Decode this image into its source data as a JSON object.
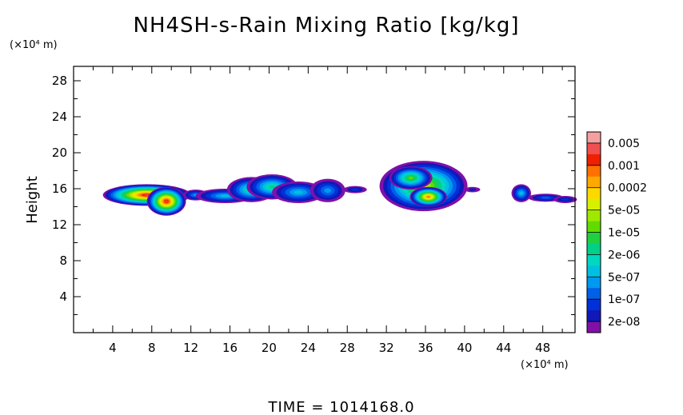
{
  "chart_data": {
    "type": "heatmap",
    "title": "NH4SH-s-Rain Mixing Ratio [kg/kg]",
    "ylabel": "Height",
    "x_unit": "(×10⁴ m)",
    "y_unit": "(×10⁴ m)",
    "footer": "TIME = 1014168.0",
    "xlim": [
      0,
      51.3
    ],
    "ylim": [
      0,
      29.6
    ],
    "x_ticks": [
      4,
      8,
      12,
      16,
      20,
      24,
      28,
      32,
      36,
      40,
      44,
      48
    ],
    "y_ticks": [
      4,
      8,
      12,
      16,
      20,
      24,
      28
    ],
    "colorbar": {
      "labels": [
        "0.005",
        "0.001",
        "0.0002",
        "5e-05",
        "1e-05",
        "2e-06",
        "5e-07",
        "1e-07",
        "2e-08"
      ],
      "colors": [
        "#f5a0a0",
        "#f05050",
        "#ee2000",
        "#ff7000",
        "#ffa800",
        "#ffd800",
        "#d8f000",
        "#a0e800",
        "#60dc00",
        "#20d040",
        "#00d088",
        "#00d8c0",
        "#00c0e0",
        "#0098f0",
        "#0060e8",
        "#0030d8",
        "#1018b8",
        "#8010a8"
      ]
    },
    "clouds": [
      {
        "xc": 7.5,
        "yc": 15.3,
        "rx": 4.5,
        "ry": 1.2,
        "peak": 17
      },
      {
        "xc": 9.5,
        "yc": 14.6,
        "rx": 2.0,
        "ry": 1.6,
        "peak": 17
      },
      {
        "xc": 12.5,
        "yc": 15.3,
        "rx": 1.3,
        "ry": 0.6,
        "peak": 5
      },
      {
        "xc": 15.5,
        "yc": 15.2,
        "rx": 3.0,
        "ry": 0.8,
        "peak": 6
      },
      {
        "xc": 18.2,
        "yc": 15.9,
        "rx": 2.5,
        "ry": 1.4,
        "peak": 8
      },
      {
        "xc": 20.3,
        "yc": 16.2,
        "rx": 2.6,
        "ry": 1.4,
        "peak": 8
      },
      {
        "xc": 23.0,
        "yc": 15.6,
        "rx": 2.7,
        "ry": 1.2,
        "peak": 6
      },
      {
        "xc": 26.0,
        "yc": 15.8,
        "rx": 1.8,
        "ry": 1.3,
        "peak": 5
      },
      {
        "xc": 28.8,
        "yc": 15.9,
        "rx": 1.2,
        "ry": 0.4,
        "peak": 3
      },
      {
        "xc": 35.8,
        "yc": 16.3,
        "rx": 4.5,
        "ry": 2.8,
        "peak": 12
      },
      {
        "xc": 34.5,
        "yc": 17.2,
        "rx": 2.2,
        "ry": 1.3,
        "peak": 10
      },
      {
        "xc": 36.3,
        "yc": 15.1,
        "rx": 1.9,
        "ry": 1.1,
        "peak": 15
      },
      {
        "xc": 40.8,
        "yc": 15.9,
        "rx": 0.8,
        "ry": 0.3,
        "peak": 2
      },
      {
        "xc": 45.8,
        "yc": 15.5,
        "rx": 1.0,
        "ry": 1.0,
        "peak": 6
      },
      {
        "xc": 48.3,
        "yc": 15.0,
        "rx": 1.8,
        "ry": 0.45,
        "peak": 4
      },
      {
        "xc": 50.3,
        "yc": 14.8,
        "rx": 1.2,
        "ry": 0.4,
        "peak": 3
      }
    ]
  }
}
